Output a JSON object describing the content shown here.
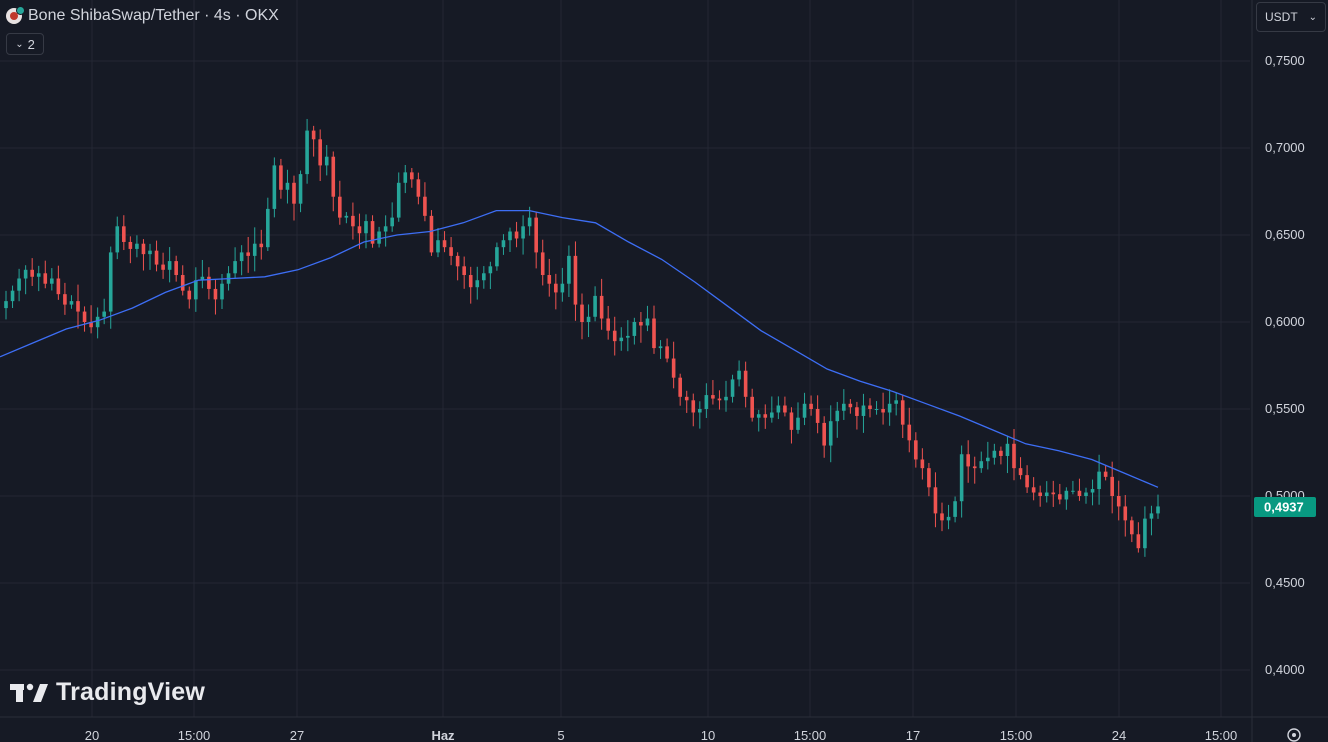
{
  "header": {
    "title": "Bone ShibaSwap/Tether · 4s · OKX",
    "indicator_count": "2"
  },
  "currency": {
    "label": "USDT"
  },
  "watermark": {
    "text": "TradingView"
  },
  "colors": {
    "background": "#161a25",
    "grid": "#242733",
    "up": "#26a69a",
    "down": "#ef5350",
    "ma_line": "#3d6ef5",
    "text": "#d1d4dc",
    "price_badge": "#089981"
  },
  "chart_data": {
    "type": "candlestick",
    "y_ticks": [
      "0,7500",
      "0,7000",
      "0,6500",
      "0,6000",
      "0,5500",
      "0,5000",
      "0,4500",
      "0,4000"
    ],
    "y_tick_values": [
      0.75,
      0.7,
      0.65,
      0.6,
      0.55,
      0.5,
      0.45,
      0.4
    ],
    "ylim": [
      0.38,
      0.77
    ],
    "x_ticks": [
      "20",
      "15:00",
      "27",
      "Haz",
      "5",
      "10",
      "15:00",
      "17",
      "15:00",
      "24",
      "15:00"
    ],
    "last_price": "0,4937",
    "last_price_value": 0.4937,
    "grid": true,
    "close_path": [
      0.612,
      0.618,
      0.625,
      0.63,
      0.626,
      0.628,
      0.622,
      0.625,
      0.616,
      0.61,
      0.612,
      0.606,
      0.6,
      0.597,
      0.603,
      0.606,
      0.64,
      0.655,
      0.646,
      0.642,
      0.645,
      0.639,
      0.641,
      0.633,
      0.63,
      0.635,
      0.627,
      0.618,
      0.613,
      0.624,
      0.626,
      0.619,
      0.613,
      0.622,
      0.628,
      0.635,
      0.64,
      0.638,
      0.645,
      0.643,
      0.665,
      0.69,
      0.676,
      0.68,
      0.668,
      0.685,
      0.71,
      0.705,
      0.69,
      0.695,
      0.672,
      0.66,
      0.661,
      0.655,
      0.651,
      0.658,
      0.645,
      0.652,
      0.655,
      0.66,
      0.68,
      0.686,
      0.682,
      0.672,
      0.661,
      0.64,
      0.647,
      0.643,
      0.638,
      0.632,
      0.627,
      0.62,
      0.624,
      0.628,
      0.632,
      0.643,
      0.647,
      0.652,
      0.648,
      0.655,
      0.66,
      0.64,
      0.627,
      0.622,
      0.617,
      0.622,
      0.638,
      0.61,
      0.6,
      0.603,
      0.615,
      0.602,
      0.595,
      0.589,
      0.591,
      0.592,
      0.6,
      0.598,
      0.602,
      0.585,
      0.586,
      0.579,
      0.568,
      0.557,
      0.555,
      0.548,
      0.55,
      0.558,
      0.556,
      0.555,
      0.557,
      0.567,
      0.572,
      0.557,
      0.545,
      0.547,
      0.545,
      0.548,
      0.552,
      0.548,
      0.538,
      0.545,
      0.553,
      0.55,
      0.542,
      0.529,
      0.543,
      0.549,
      0.553,
      0.551,
      0.546,
      0.552,
      0.55,
      0.55,
      0.548,
      0.553,
      0.555,
      0.541,
      0.532,
      0.521,
      0.516,
      0.505,
      0.49,
      0.486,
      0.488,
      0.497,
      0.524,
      0.517,
      0.516,
      0.52,
      0.522,
      0.526,
      0.523,
      0.53,
      0.516,
      0.512,
      0.505,
      0.502,
      0.5,
      0.502,
      0.501,
      0.498,
      0.503,
      0.503,
      0.5,
      0.502,
      0.504,
      0.514,
      0.511,
      0.5,
      0.494,
      0.486,
      0.478,
      0.47,
      0.487,
      0.49,
      0.494
    ],
    "ma_path": [
      0.58,
      0.588,
      0.596,
      0.601,
      0.608,
      0.617,
      0.624,
      0.625,
      0.626,
      0.63,
      0.637,
      0.646,
      0.65,
      0.652,
      0.657,
      0.664,
      0.664,
      0.66,
      0.657,
      0.646,
      0.636,
      0.623,
      0.609,
      0.595,
      0.584,
      0.573,
      0.566,
      0.56,
      0.553,
      0.546,
      0.538,
      0.53,
      0.526,
      0.521,
      0.513,
      0.505
    ]
  }
}
